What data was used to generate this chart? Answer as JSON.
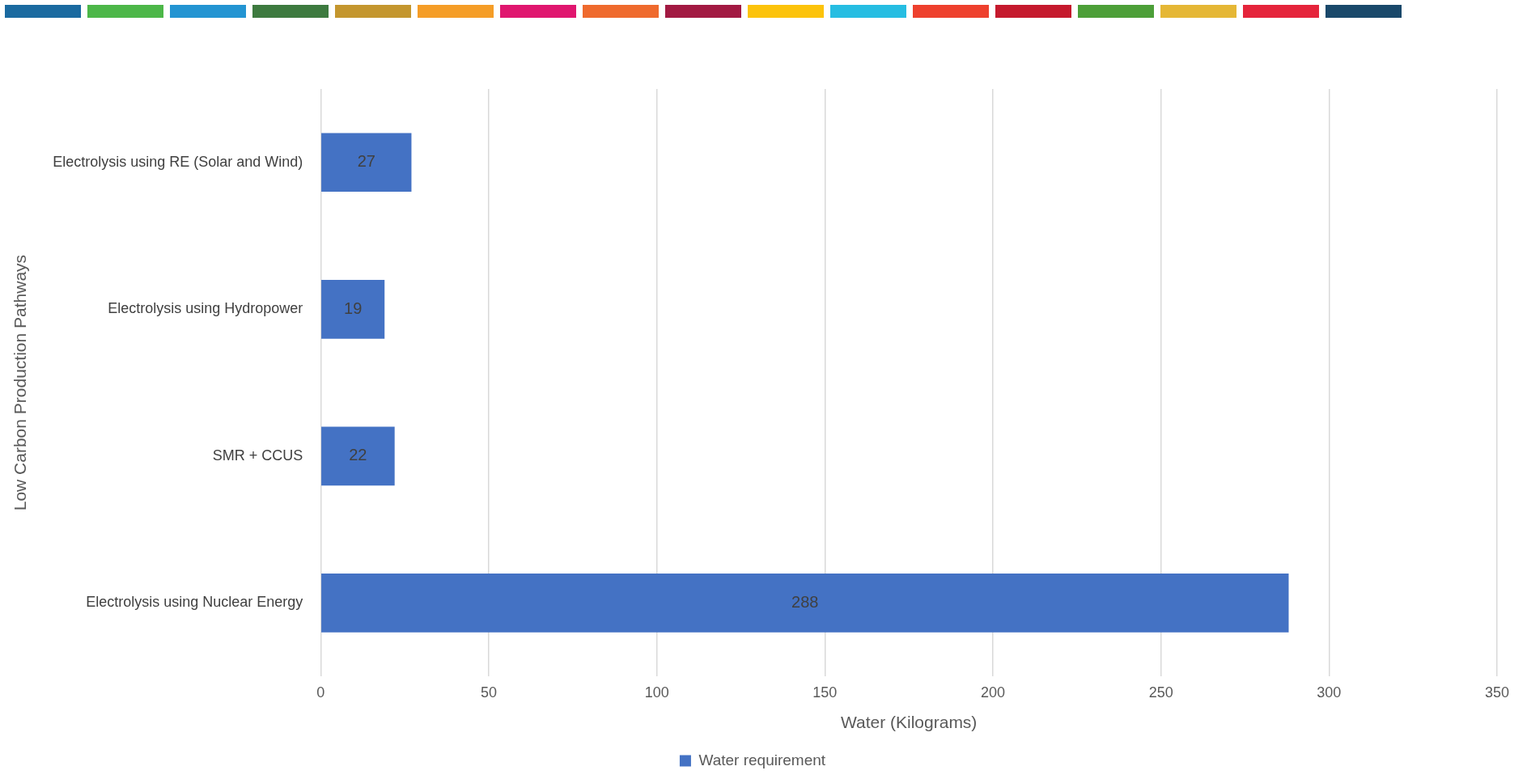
{
  "chart_data": {
    "type": "bar",
    "orientation": "horizontal",
    "xlabel": "Water (Kilograms)",
    "ylabel": "Low Carbon Production Pathways",
    "categories": [
      "Electrolysis using RE (Solar and Wind)",
      "Electrolysis using Hydropower",
      "SMR + CCUS",
      "Electrolysis using Nuclear Energy"
    ],
    "series": [
      {
        "name": "Water requirement",
        "color": "#4472c4",
        "values": [
          27,
          19,
          22,
          288
        ]
      }
    ],
    "xlim": [
      0,
      350
    ],
    "xticks": [
      0,
      50,
      100,
      150,
      200,
      250,
      300,
      350
    ],
    "grid": "x",
    "legend": "bottom",
    "data_labels": true
  }
}
